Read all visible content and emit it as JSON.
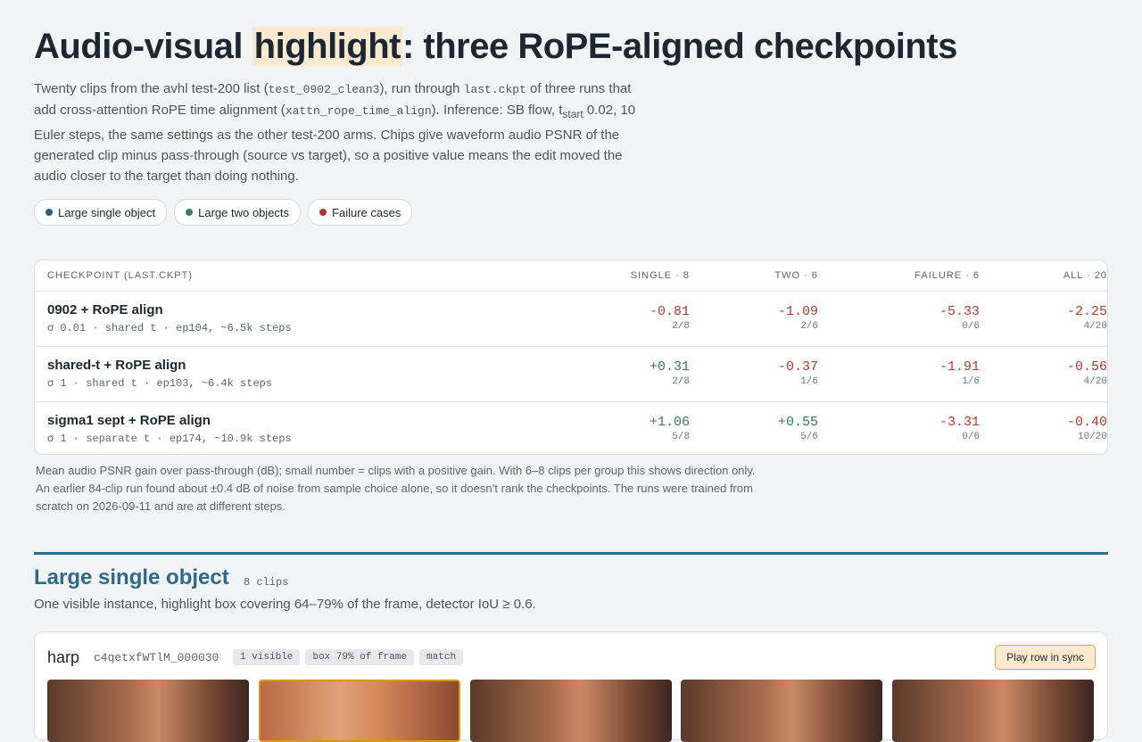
{
  "header": {
    "title": [
      "Audio-visual",
      "highlight",
      ": three RoPE-aligned checkpoints"
    ]
  },
  "intro": [
    "Twenty clips from the avhl test-200 list (",
    "test_0902_clean3",
    "), run through ",
    "last.ckpt",
    " of three runs that add cross-attention RoPE time alignment (",
    "xattn_rope_time_align",
    "). Inference: SB flow, t",
    "start",
    " 0.02, 10 Euler steps, the same settings as the other test-200 arms. Chips give waveform audio PSNR of the generated clip minus pass-through (source vs target), so a positive value means the edit moved the audio closer to the target than doing nothing."
  ],
  "legend": [
    {
      "label": "Large single object",
      "color": "#2f5a78"
    },
    {
      "label": "Large two objects",
      "color": "#3a7a5e"
    },
    {
      "label": "Failure cases",
      "color": "#a83a32"
    }
  ],
  "table": {
    "headers": [
      "CHECKPOINT (LAST.CKPT)",
      "SINGLE · 8",
      "TWO · 6",
      "FAILURE · 6",
      "ALL · 20"
    ],
    "rows": [
      {
        "name": "0902 + RoPE align",
        "meta": "σ 0.01 · shared t · ep104, ~6.5k steps",
        "cells": [
          {
            "value": "-0.81",
            "count": "2/8"
          },
          {
            "value": "-1.09",
            "count": "2/6"
          },
          {
            "value": "-5.33",
            "count": "0/6"
          },
          {
            "value": "-2.25",
            "count": "4/20"
          }
        ]
      },
      {
        "name": "shared-t + RoPE align",
        "meta": "σ 1 · shared t · ep103, ~6.4k steps",
        "cells": [
          {
            "value": "+0.31",
            "count": "2/8"
          },
          {
            "value": "-0.37",
            "count": "1/6"
          },
          {
            "value": "-1.91",
            "count": "1/6"
          },
          {
            "value": "-0.56",
            "count": "4/20"
          }
        ]
      },
      {
        "name": "sigma1 sept + RoPE align",
        "meta": "σ 1 · separate t · ep174, ~10.9k steps",
        "cells": [
          {
            "value": "+1.06",
            "count": "5/8"
          },
          {
            "value": "+0.55",
            "count": "5/6"
          },
          {
            "value": "-3.31",
            "count": "0/6"
          },
          {
            "value": "-0.40",
            "count": "10/20"
          }
        ]
      }
    ]
  },
  "note": "Mean audio PSNR gain over pass-through (dB); small number = clips with a positive gain. With 6–8 clips per group this shows direction only. An earlier 84-clip run found about ±0.4 dB of noise from sample choice alone, so it doesn’t rank the checkpoints. The runs were trained from scratch on 2026-09-11 and are at different steps.",
  "sections": [
    {
      "title": "Large single object",
      "count": "8 clips",
      "description": "One visible instance, highlight box covering 64–79% of the frame, detector IoU ≥ 0.6.",
      "clips": [
        {
          "name": "harp",
          "id": "c4qetxfWTlM_000030",
          "tags": [
            "1 visible",
            "box 79% of frame",
            "match"
          ],
          "action": "Play row in sync"
        }
      ]
    }
  ]
}
